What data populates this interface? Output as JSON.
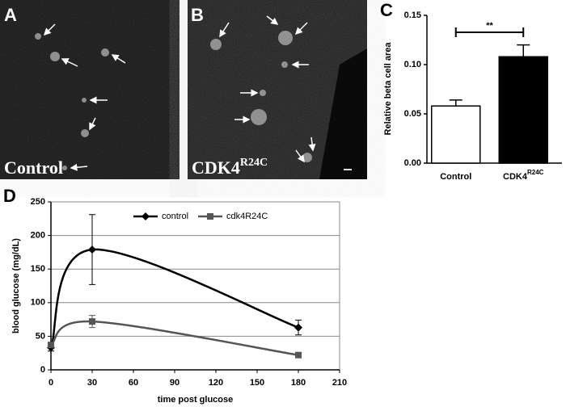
{
  "panels": [
    {
      "label": "A",
      "caption": "Control"
    },
    {
      "label": "B",
      "caption": "CDK4",
      "caption_sup": "R24C"
    }
  ],
  "chart_data": [
    {
      "type": "bar",
      "label": "C",
      "ylabel": "Relative beta cell area",
      "categories": [
        "Control",
        "CDK4"
      ],
      "category_sup": [
        null,
        "R24C"
      ],
      "values": [
        0.058,
        0.108
      ],
      "errors": [
        0.006,
        0.012
      ],
      "colors": [
        "#ffffff",
        "#000000"
      ],
      "significance": "**",
      "ylim": [
        0,
        0.15
      ],
      "yticks": [
        {
          "value": 0,
          "label": "0.00"
        },
        {
          "value": 0.05,
          "label": "0.05"
        },
        {
          "value": 0.1,
          "label": "0.10"
        },
        {
          "value": 0.15,
          "label": "0.15"
        }
      ]
    },
    {
      "type": "line",
      "label": "D",
      "xlabel": "time post glucose",
      "ylabel": "blood glucose (mg/dL)",
      "x": [
        0,
        30,
        180
      ],
      "series": [
        {
          "name": "control",
          "color": "#000000",
          "marker": "diamond",
          "values": [
            33,
            179,
            63
          ],
          "errors": [
            5,
            52,
            11
          ]
        },
        {
          "name": "cdk4R24C",
          "color": "#555555",
          "marker": "square",
          "values": [
            37,
            72,
            22
          ],
          "errors": [
            4,
            9,
            3
          ]
        }
      ],
      "xlim": [
        0,
        210
      ],
      "xticks": [
        0,
        30,
        60,
        90,
        120,
        150,
        180,
        210
      ],
      "ylim": [
        0,
        250
      ],
      "yticks": [
        0,
        50,
        100,
        150,
        200,
        250
      ],
      "grid": true,
      "legend": "top"
    }
  ]
}
